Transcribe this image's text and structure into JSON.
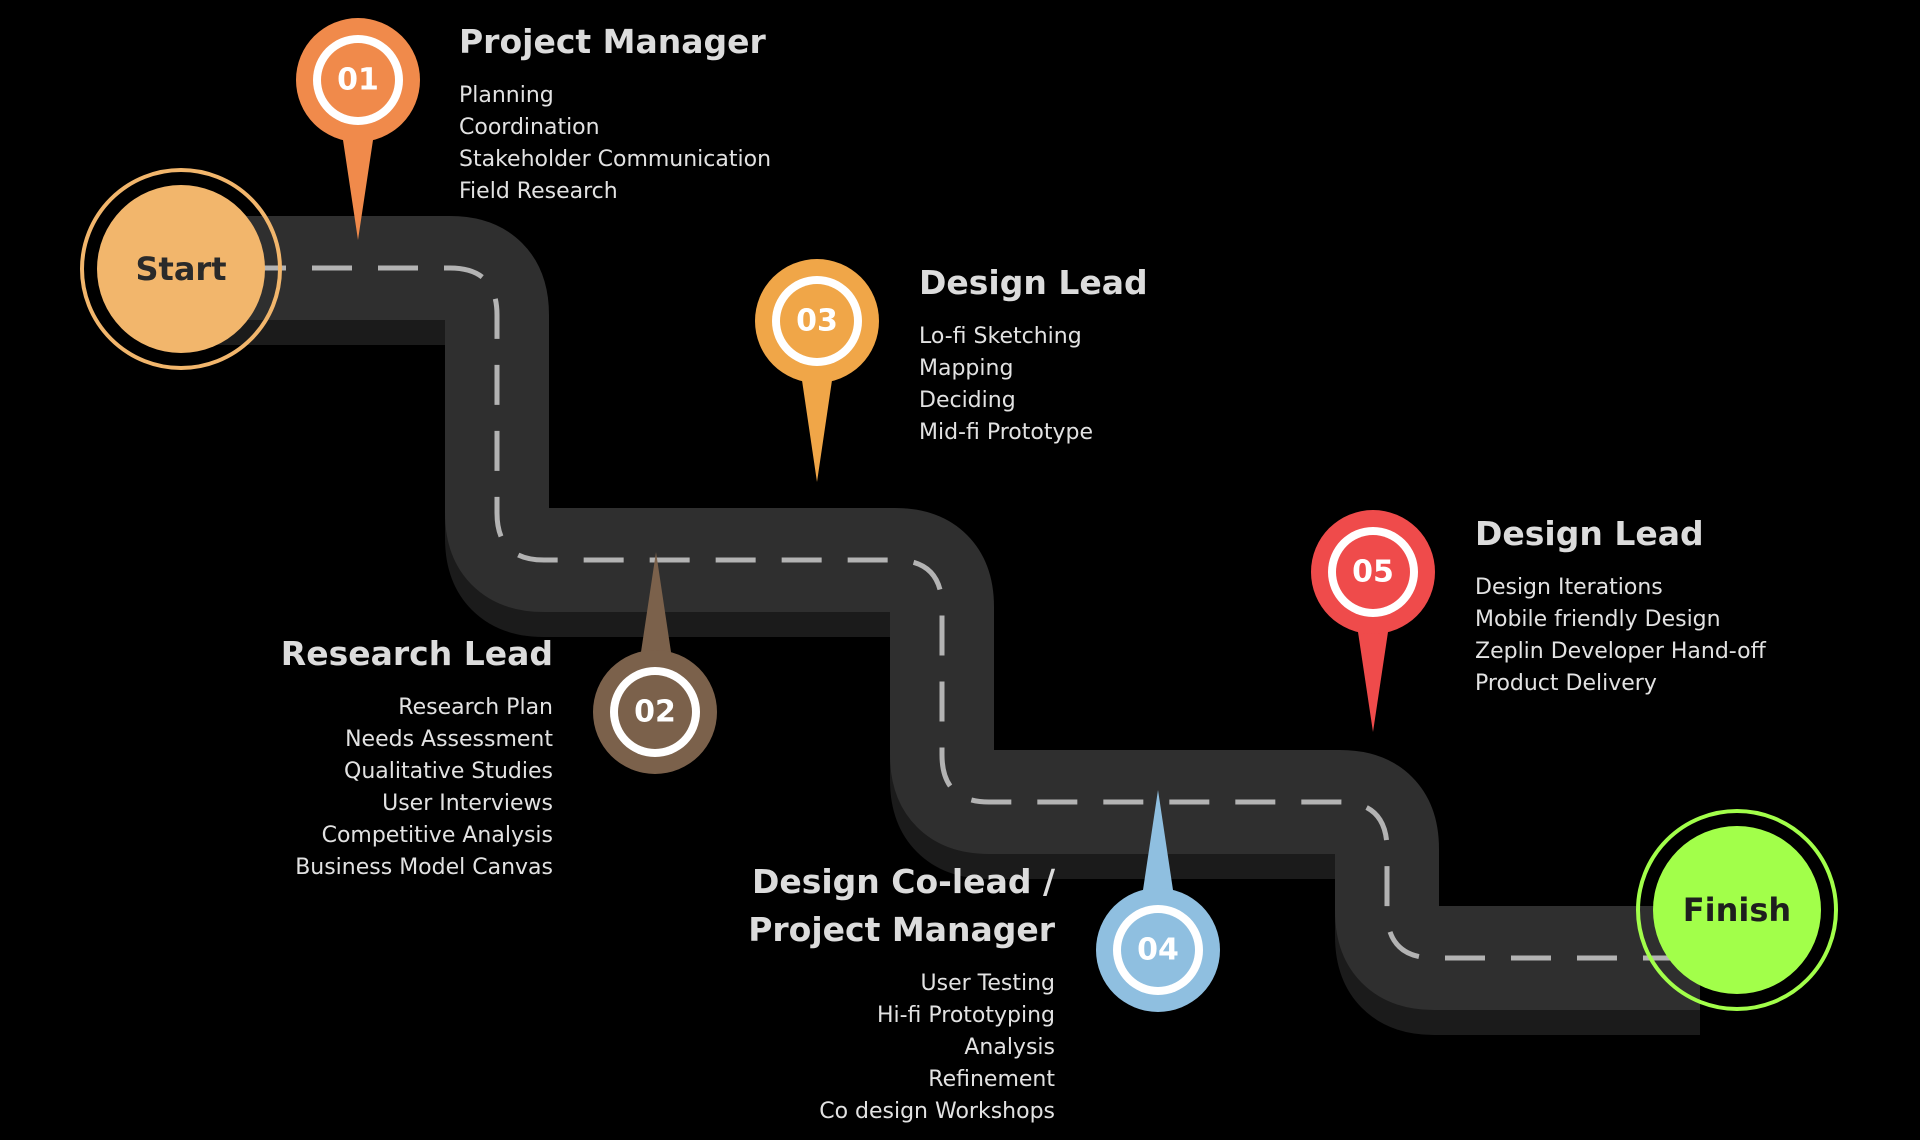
{
  "terminals": {
    "start": {
      "label": "Start",
      "color": "#f2b66c"
    },
    "finish": {
      "label": "Finish",
      "color": "#a2ff4a"
    }
  },
  "milestones": [
    {
      "num": "01",
      "title": "Project Manager",
      "color": "#f08a4b",
      "items": [
        "Planning",
        "Coordination",
        "Stakeholder Communication",
        "Field Research"
      ]
    },
    {
      "num": "02",
      "title": "Research Lead",
      "color": "#7b614b",
      "items": [
        "Research Plan",
        "Needs Assessment",
        "Qualitative Studies",
        "User Interviews",
        "Competitive Analysis",
        "Business Model Canvas"
      ]
    },
    {
      "num": "03",
      "title": "Design Lead",
      "color": "#f0a648",
      "items": [
        "Lo-fi Sketching",
        "Mapping",
        "Deciding",
        "Mid-fi Prototype"
      ]
    },
    {
      "num": "04",
      "title_lines": [
        "Design Co-lead /",
        "Project Manager"
      ],
      "color": "#8fbfe0",
      "items": [
        "User Testing",
        "Hi-fi Prototyping",
        "Analysis",
        "Refinement",
        "Co design Workshops"
      ]
    },
    {
      "num": "05",
      "title": "Design Lead",
      "color": "#ef4b4b",
      "items": [
        "Design Iterations",
        "Mobile friendly Design",
        "Zeplin Developer Hand-off",
        "Product Delivery"
      ]
    }
  ]
}
